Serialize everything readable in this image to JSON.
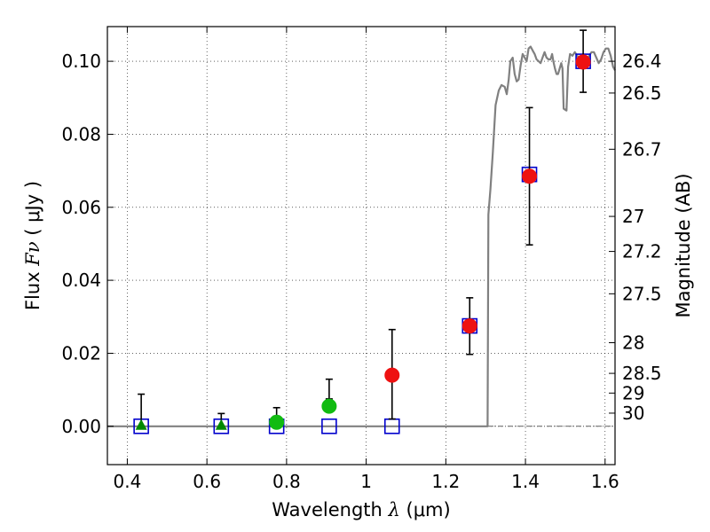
{
  "chart_data": {
    "type": "scatter",
    "xlabel": {
      "prefix": "Wavelength  ",
      "symbol": "λ",
      "unit": " (μm)"
    },
    "ylabel": {
      "prefix": "Flux  ",
      "symbol": "Fν",
      "unit": "  ( μJy )"
    },
    "y2label": "Magnitude (AB)",
    "xlim": [
      0.35,
      1.625
    ],
    "ylim": [
      -0.0105,
      0.1095
    ],
    "grid": true,
    "x_ticks": [
      {
        "value": 0.4,
        "label": "0.4"
      },
      {
        "value": 0.6,
        "label": "0.6"
      },
      {
        "value": 0.8,
        "label": "0.8"
      },
      {
        "value": 1.0,
        "label": "1"
      },
      {
        "value": 1.2,
        "label": "1.2"
      },
      {
        "value": 1.4,
        "label": "1.4"
      },
      {
        "value": 1.6,
        "label": "1.6"
      }
    ],
    "y_ticks": [
      {
        "value": 0.0,
        "label": "0.00"
      },
      {
        "value": 0.02,
        "label": "0.02"
      },
      {
        "value": 0.04,
        "label": "0.04"
      },
      {
        "value": 0.06,
        "label": "0.06"
      },
      {
        "value": 0.08,
        "label": "0.08"
      },
      {
        "value": 0.1,
        "label": "0.10"
      }
    ],
    "mag_ticks": [
      {
        "flux": 0.1,
        "label": "26.4"
      },
      {
        "flux": 0.0913,
        "label": "26.5"
      },
      {
        "flux": 0.0759,
        "label": "26.7"
      },
      {
        "flux": 0.0575,
        "label": "27"
      },
      {
        "flux": 0.0479,
        "label": "27.2"
      },
      {
        "flux": 0.0363,
        "label": "27.5"
      },
      {
        "flux": 0.0229,
        "label": "28"
      },
      {
        "flux": 0.0145,
        "label": "28.5"
      },
      {
        "flux": 0.0091,
        "label": "29"
      },
      {
        "flux": 0.0036,
        "label": "30"
      }
    ],
    "series": [
      {
        "marker": "square",
        "color": "#0000cc",
        "points": [
          {
            "x": 0.435,
            "y": 0.0
          },
          {
            "x": 0.636,
            "y": 0.0
          },
          {
            "x": 0.775,
            "y": 0.0
          },
          {
            "x": 0.907,
            "y": 0.0
          },
          {
            "x": 1.065,
            "y": 0.0
          },
          {
            "x": 1.26,
            "y": 0.0275
          },
          {
            "x": 1.41,
            "y": 0.069
          },
          {
            "x": 1.545,
            "y": 0.1
          }
        ]
      },
      {
        "marker": "triangle",
        "color": "#008800",
        "points": [
          {
            "x": 0.435,
            "y": 0.0,
            "yerr": [
              0.0,
              0.0088
            ]
          },
          {
            "x": 0.636,
            "y": 0.0,
            "yerr": [
              0.0,
              0.0035
            ]
          }
        ]
      },
      {
        "marker": "circle",
        "color": "#11bb11",
        "points": [
          {
            "x": 0.775,
            "y": 0.0011,
            "yerr": [
              0.0028,
              0.0051
            ]
          },
          {
            "x": 0.907,
            "y": 0.0055,
            "yerr": [
              0.0075,
              0.0129
            ]
          }
        ]
      },
      {
        "marker": "circle",
        "color": "#ee1111",
        "points": [
          {
            "x": 1.065,
            "y": 0.014,
            "yerr": [
              0.002,
              0.0265
            ]
          },
          {
            "x": 1.26,
            "y": 0.0275,
            "yerr": [
              0.0197,
              0.0352
            ]
          },
          {
            "x": 1.41,
            "y": 0.0685,
            "yerr": [
              0.0497,
              0.0873
            ]
          },
          {
            "x": 1.545,
            "y": 0.0998,
            "yerr": [
              0.0915,
              0.1085
            ]
          }
        ]
      }
    ],
    "model": {
      "color": "#808080",
      "points": [
        [
          0.35,
          0.0
        ],
        [
          1.305,
          0.0
        ],
        [
          1.307,
          0.058
        ],
        [
          1.312,
          0.065
        ],
        [
          1.318,
          0.075
        ],
        [
          1.325,
          0.088
        ],
        [
          1.333,
          0.092
        ],
        [
          1.34,
          0.0935
        ],
        [
          1.348,
          0.093
        ],
        [
          1.353,
          0.091
        ],
        [
          1.358,
          0.095
        ],
        [
          1.362,
          0.1
        ],
        [
          1.368,
          0.101
        ],
        [
          1.373,
          0.0965
        ],
        [
          1.378,
          0.0945
        ],
        [
          1.383,
          0.095
        ],
        [
          1.388,
          0.099
        ],
        [
          1.393,
          0.102
        ],
        [
          1.398,
          0.101
        ],
        [
          1.403,
          0.1
        ],
        [
          1.408,
          0.1035
        ],
        [
          1.413,
          0.104
        ],
        [
          1.418,
          0.103
        ],
        [
          1.423,
          0.102
        ],
        [
          1.428,
          0.1005
        ],
        [
          1.433,
          0.1
        ],
        [
          1.438,
          0.0995
        ],
        [
          1.443,
          0.101
        ],
        [
          1.448,
          0.1025
        ],
        [
          1.453,
          0.101
        ],
        [
          1.458,
          0.1005
        ],
        [
          1.463,
          0.1005
        ],
        [
          1.467,
          0.102
        ],
        [
          1.47,
          0.1
        ],
        [
          1.474,
          0.098
        ],
        [
          1.478,
          0.0965
        ],
        [
          1.482,
          0.0965
        ],
        [
          1.486,
          0.098
        ],
        [
          1.49,
          0.0995
        ],
        [
          1.493,
          0.098
        ],
        [
          1.496,
          0.087
        ],
        [
          1.503,
          0.0865
        ],
        [
          1.507,
          0.0985
        ],
        [
          1.512,
          0.102
        ],
        [
          1.518,
          0.1015
        ],
        [
          1.524,
          0.1025
        ],
        [
          1.53,
          0.1015
        ],
        [
          1.536,
          0.1005
        ],
        [
          1.542,
          0.0995
        ],
        [
          1.548,
          0.099
        ],
        [
          1.554,
          0.1
        ],
        [
          1.56,
          0.1015
        ],
        [
          1.566,
          0.1025
        ],
        [
          1.572,
          0.1025
        ],
        [
          1.578,
          0.101
        ],
        [
          1.584,
          0.0995
        ],
        [
          1.59,
          0.1005
        ],
        [
          1.596,
          0.1025
        ],
        [
          1.602,
          0.1035
        ],
        [
          1.608,
          0.1035
        ],
        [
          1.614,
          0.1015
        ],
        [
          1.62,
          0.0985
        ],
        [
          1.625,
          0.0975
        ]
      ]
    }
  }
}
